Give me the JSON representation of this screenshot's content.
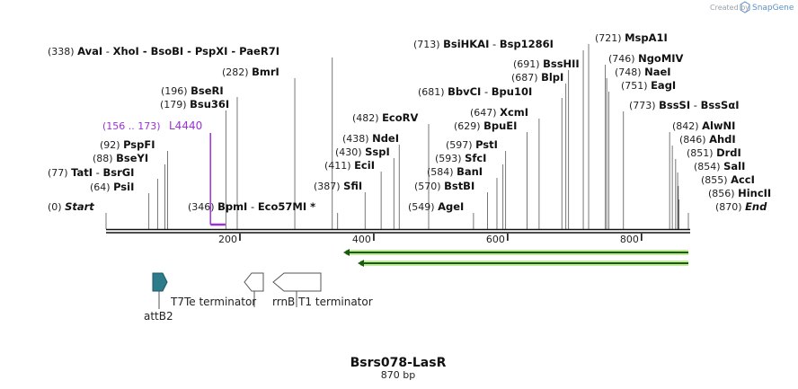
{
  "brand": {
    "created_by": "Created by",
    "app": "SnapGene",
    "accent": "#4a86c5"
  },
  "sequence": {
    "name": "Bsrs078-LasR",
    "length_label": "870 bp",
    "length": 870
  },
  "colors": {
    "primer": "#9b30d9",
    "arrow_glow": "#8fd94a",
    "feature_fill": "#2c7c8c"
  },
  "sites": [
    {
      "pos": "(0)",
      "label": "Start",
      "sep": "",
      "name2": "",
      "italic": true,
      "bp": 0
    },
    {
      "pos": "(64)",
      "label": "PsiI",
      "sep": "",
      "name2": "",
      "italic": false,
      "bp": 64
    },
    {
      "pos": "(77)",
      "label": "TatI",
      "sep": "-",
      "name2": "BsrGI",
      "italic": false,
      "bp": 77
    },
    {
      "pos": "(88)",
      "label": "BseYI",
      "sep": "",
      "name2": "",
      "italic": false,
      "bp": 88
    },
    {
      "pos": "(92)",
      "label": "PspFI",
      "sep": "",
      "name2": "",
      "italic": false,
      "bp": 92
    },
    {
      "pos": "(179)",
      "label": "Bsu36I",
      "sep": "",
      "name2": "",
      "italic": false,
      "bp": 179
    },
    {
      "pos": "(196)",
      "label": "BseRI",
      "sep": "",
      "name2": "",
      "italic": false,
      "bp": 196
    },
    {
      "pos": "(282)",
      "label": "BmrI",
      "sep": "",
      "name2": "",
      "italic": false,
      "bp": 282
    },
    {
      "pos": "(338)",
      "label": "AvaI",
      "sep": "-",
      "name2": "XhoI  -  BsoBI  -  PspXI  -  PaeR7I",
      "italic": false,
      "bp": 338
    },
    {
      "pos": "(346)",
      "label": "BpmI",
      "sep": "-",
      "name2": "Eco57MI *",
      "italic": false,
      "bp": 346
    },
    {
      "pos": "(387)",
      "label": "SfiI",
      "sep": "",
      "name2": "",
      "italic": false,
      "bp": 387
    },
    {
      "pos": "(411)",
      "label": "EciI",
      "sep": "",
      "name2": "",
      "italic": false,
      "bp": 411
    },
    {
      "pos": "(430)",
      "label": "SspI",
      "sep": "",
      "name2": "",
      "italic": false,
      "bp": 430
    },
    {
      "pos": "(438)",
      "label": "NdeI",
      "sep": "",
      "name2": "",
      "italic": false,
      "bp": 438
    },
    {
      "pos": "(482)",
      "label": "EcoRV",
      "sep": "",
      "name2": "",
      "italic": false,
      "bp": 482
    },
    {
      "pos": "(549)",
      "label": "AgeI",
      "sep": "",
      "name2": "",
      "italic": false,
      "bp": 549
    },
    {
      "pos": "(570)",
      "label": "BstBI",
      "sep": "",
      "name2": "",
      "italic": false,
      "bp": 570
    },
    {
      "pos": "(584)",
      "label": "BanI",
      "sep": "",
      "name2": "",
      "italic": false,
      "bp": 584
    },
    {
      "pos": "(593)",
      "label": "SfcI",
      "sep": "",
      "name2": "",
      "italic": false,
      "bp": 593
    },
    {
      "pos": "(597)",
      "label": "PstI",
      "sep": "",
      "name2": "",
      "italic": false,
      "bp": 597
    },
    {
      "pos": "(629)",
      "label": "BpuEI",
      "sep": "",
      "name2": "",
      "italic": false,
      "bp": 629
    },
    {
      "pos": "(647)",
      "label": "XcmI",
      "sep": "",
      "name2": "",
      "italic": false,
      "bp": 647
    },
    {
      "pos": "(681)",
      "label": "BbvCI",
      "sep": "-",
      "name2": "Bpu10I",
      "italic": false,
      "bp": 681
    },
    {
      "pos": "(687)",
      "label": "BlpI",
      "sep": "",
      "name2": "",
      "italic": false,
      "bp": 687
    },
    {
      "pos": "(691)",
      "label": "BssHII",
      "sep": "",
      "name2": "",
      "italic": false,
      "bp": 691
    },
    {
      "pos": "(713)",
      "label": "BsiHKAI",
      "sep": "-",
      "name2": "Bsp1286I",
      "italic": false,
      "bp": 713
    },
    {
      "pos": "(721)",
      "label": "MspA1I",
      "sep": "",
      "name2": "",
      "italic": false,
      "bp": 721
    },
    {
      "pos": "(746)",
      "label": "NgoMIV",
      "sep": "",
      "name2": "",
      "italic": false,
      "bp": 746
    },
    {
      "pos": "(748)",
      "label": "NaeI",
      "sep": "",
      "name2": "",
      "italic": false,
      "bp": 748
    },
    {
      "pos": "(751)",
      "label": "EagI",
      "sep": "",
      "name2": "",
      "italic": false,
      "bp": 751
    },
    {
      "pos": "(773)",
      "label": "BssSI",
      "sep": "-",
      "name2": "BssSαI",
      "italic": false,
      "bp": 773
    },
    {
      "pos": "(842)",
      "label": "AlwNI",
      "sep": "",
      "name2": "",
      "italic": false,
      "bp": 842
    },
    {
      "pos": "(846)",
      "label": "AhdI",
      "sep": "",
      "name2": "",
      "italic": false,
      "bp": 846
    },
    {
      "pos": "(851)",
      "label": "DrdI",
      "sep": "",
      "name2": "",
      "italic": false,
      "bp": 851
    },
    {
      "pos": "(854)",
      "label": "SalI",
      "sep": "",
      "name2": "",
      "italic": false,
      "bp": 854
    },
    {
      "pos": "(855)",
      "label": "AccI",
      "sep": "",
      "name2": "",
      "italic": false,
      "bp": 855
    },
    {
      "pos": "(856)",
      "label": "HincII",
      "sep": "",
      "name2": "",
      "italic": false,
      "bp": 856
    },
    {
      "pos": "(870)",
      "label": "End",
      "sep": "",
      "name2": "",
      "italic": true,
      "bp": 870
    }
  ],
  "primer": {
    "range": "(156 .. 173)",
    "name": "L4440",
    "start_bp": 156,
    "end_bp": 173
  },
  "ruler": {
    "ticks": [
      200,
      400,
      600,
      800
    ]
  },
  "features": {
    "attB2": "attB2",
    "t7te": "T7Te terminator",
    "rrnb": "rrnB T1 terminator"
  }
}
